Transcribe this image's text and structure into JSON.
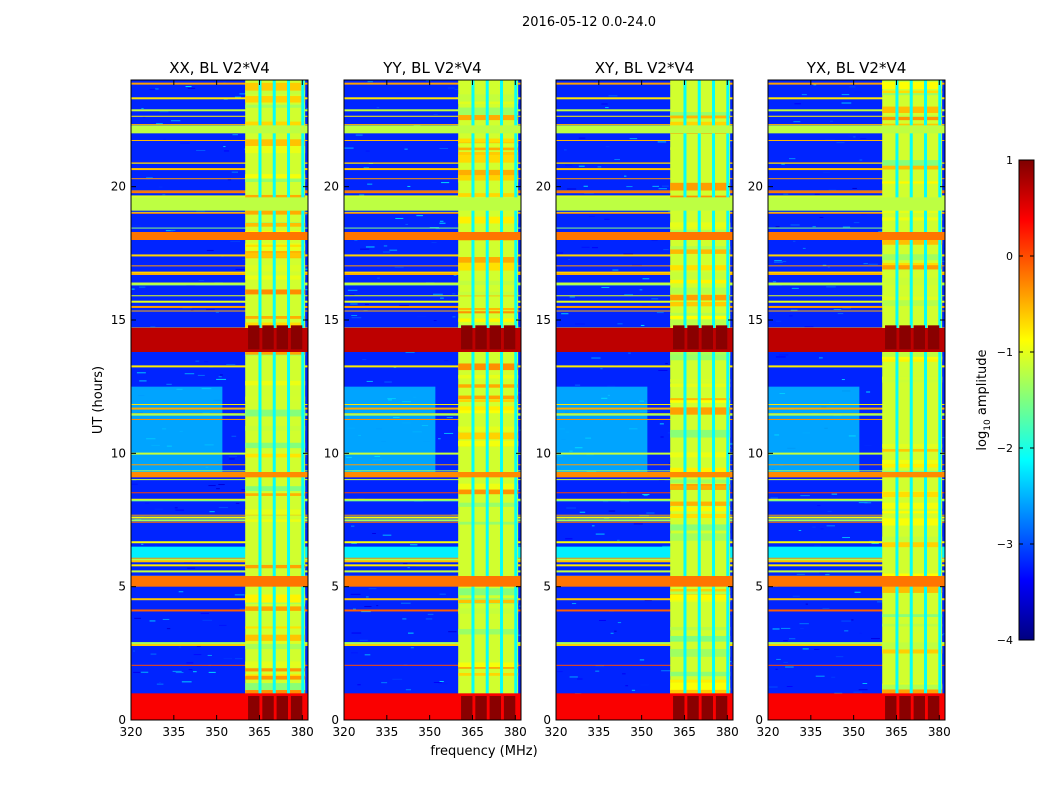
{
  "chart_data": {
    "type": "heatmap",
    "suptitle": "2016-05-12 0.0-24.0",
    "xlabel": "frequency (MHz)",
    "ylabel": "UT (hours)",
    "xlim": [
      320,
      382
    ],
    "ylim": [
      0,
      24
    ],
    "xticks": [
      320,
      335,
      350,
      365,
      380
    ],
    "xtick_labels": [
      "320",
      "335",
      "350",
      "365",
      "380"
    ],
    "yticks": [
      0,
      5,
      10,
      15,
      20
    ],
    "ytick_labels": [
      "0",
      "5",
      "10",
      "15",
      "20"
    ],
    "colorbar": {
      "label_prefix": "log",
      "label_sub": "10",
      "label_suffix": " amplitude",
      "colormap": "jet",
      "range": [
        -4,
        1
      ],
      "ticks": [
        1,
        0,
        -1,
        -2,
        -3,
        -4
      ],
      "tick_labels": [
        "1",
        "0",
        "−1",
        "−2",
        "−3",
        "−4"
      ]
    },
    "panels": [
      {
        "title": "XX, BL V2*V4",
        "rfi_band_mhz": [
          360,
          381
        ],
        "background_log_amplitude": -3.2,
        "quiet_period_hours": [
          9.2,
          12.5
        ],
        "quiet_period_log_amplitude": -2.3
      },
      {
        "title": "YY, BL V2*V4",
        "rfi_band_mhz": [
          360,
          381
        ],
        "background_log_amplitude": -3.2,
        "quiet_period_hours": [
          9.2,
          12.5
        ],
        "quiet_period_log_amplitude": -2.3
      },
      {
        "title": "XY, BL V2*V4",
        "rfi_band_mhz": [
          360,
          381
        ],
        "background_log_amplitude": -3.2,
        "quiet_period_hours": [
          9.2,
          12.5
        ],
        "quiet_period_log_amplitude": -2.3
      },
      {
        "title": "YX, BL V2*V4",
        "rfi_band_mhz": [
          360,
          381
        ],
        "background_log_amplitude": -3.2,
        "quiet_period_hours": [
          9.2,
          12.5
        ],
        "quiet_period_log_amplitude": -2.3
      }
    ],
    "strong_bands_hours": [
      {
        "ut": [
          0.0,
          1.0
        ],
        "log_amplitude": 0.4
      },
      {
        "ut": [
          5.0,
          5.4
        ],
        "log_amplitude": -0.2
      },
      {
        "ut": [
          9.1,
          9.3
        ],
        "log_amplitude": -0.3
      },
      {
        "ut": [
          13.8,
          14.7
        ],
        "log_amplitude": 0.7
      },
      {
        "ut": [
          18.0,
          18.3
        ],
        "log_amplitude": -0.2
      },
      {
        "ut": [
          19.1,
          19.6
        ],
        "log_amplitude": -1.2
      },
      {
        "ut": [
          22.0,
          22.3
        ],
        "log_amplitude": -1.2
      }
    ]
  }
}
